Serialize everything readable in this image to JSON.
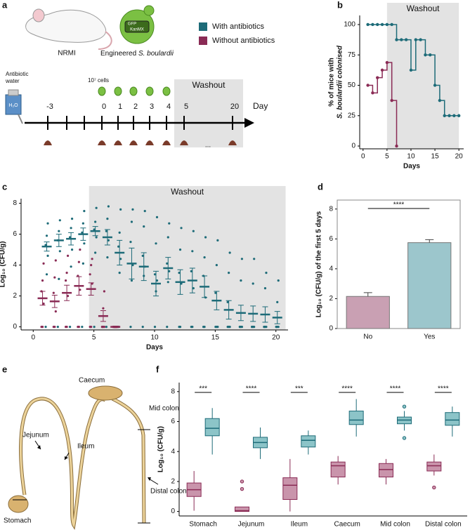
{
  "panel_labels": [
    "a",
    "b",
    "c",
    "d",
    "e",
    "f"
  ],
  "diagram_a": {
    "mouse_label": "NRMI",
    "yeast_label": [
      "Engineered ",
      "S. boulardii"
    ],
    "gene_labels": [
      "GFP",
      "KanMX"
    ],
    "bottle_label": "H₂O",
    "water_label": [
      "Antibiotic",
      "water"
    ],
    "cells_label": "10⁷ cells",
    "washout": "Washout",
    "axis_label": "Day",
    "days": [
      "-3",
      "0",
      "1",
      "2",
      "3",
      "4",
      "5",
      "20"
    ],
    "ellipsis": "..."
  },
  "diagram_e": {
    "labels": [
      "Caecum",
      "Jejunum",
      "Ileum",
      "Mid colon",
      "Distal colon",
      "Stomach"
    ]
  },
  "chart_data": [
    {
      "type": "step",
      "title": "Washout",
      "xlabel": "Days",
      "ylabel": [
        "% of mice with",
        "S. boulardii colonised"
      ],
      "x": [
        1,
        2,
        3,
        4,
        5,
        6,
        7,
        8,
        9,
        10,
        11,
        12,
        13,
        14,
        15,
        16,
        17,
        18,
        19,
        20
      ],
      "series": [
        {
          "name": "With antibiotics",
          "color": "#1d6b78",
          "values": [
            100,
            100,
            100,
            100,
            100,
            100,
            87.5,
            87.5,
            87.5,
            62.5,
            87.5,
            87.5,
            75,
            75,
            50,
            37.5,
            25,
            25,
            25,
            25
          ]
        },
        {
          "name": "Without antibiotics",
          "color": "#8a2b55",
          "values": [
            50,
            43.75,
            56.25,
            62.5,
            68.75,
            37.5,
            0,
            null,
            null,
            null,
            null,
            null,
            null,
            null,
            null,
            null,
            null,
            null,
            null,
            null
          ]
        }
      ],
      "xlim": [
        -0.7,
        21
      ],
      "ylim": [
        -2.3,
        107.5
      ],
      "xticks": [
        0,
        5,
        10,
        15,
        20
      ],
      "yticks": [
        0,
        25,
        50,
        75,
        100
      ],
      "shade": [
        5,
        20
      ]
    },
    {
      "type": "scatter-mean",
      "title": "Washout",
      "xlabel": "Days",
      "ylabel": "Log₁₀ (CFU/g)",
      "x": [
        1,
        2,
        3,
        4,
        5,
        6,
        7,
        8,
        9,
        10,
        11,
        12,
        13,
        14,
        15,
        16,
        17,
        18,
        19,
        20
      ],
      "series": [
        {
          "color": "#1d6b78",
          "values": [
            5.2,
            5.6,
            5.7,
            6.0,
            6.2,
            5.8,
            4.8,
            4.1,
            3.9,
            2.8,
            3.8,
            2.9,
            3.0,
            2.6,
            1.7,
            1.1,
            0.9,
            0.85,
            0.8,
            0.6
          ],
          "errors": [
            0.3,
            0.4,
            0.4,
            0.4,
            0.3,
            0.5,
            0.8,
            1.0,
            0.9,
            0.8,
            0.7,
            0.8,
            0.8,
            0.7,
            0.6,
            0.6,
            0.5,
            0.5,
            0.5,
            0.4
          ],
          "points": [
            [
              0,
              3.4,
              4.6,
              5.3,
              5.9,
              6.7
            ],
            [
              0,
              3.1,
              4.9,
              5.6,
              6.2,
              6.9
            ],
            [
              0,
              3.9,
              5.0,
              5.8,
              6.4,
              7.0
            ],
            [
              0,
              4.1,
              5.4,
              6.1,
              6.7,
              7.5
            ],
            [
              0,
              4.8,
              5.8,
              6.3,
              6.8,
              7.7
            ],
            [
              0,
              4.5,
              5.6,
              6.2,
              7.0,
              7.8
            ],
            [
              0,
              3.5,
              4.4,
              5.2,
              6.1,
              7.6
            ],
            [
              0,
              3.0,
              4.0,
              5.5,
              6.8,
              7.6
            ],
            [
              0,
              3.3,
              3.9,
              4.6,
              6.5,
              7.5
            ],
            [
              0,
              2.3,
              3.0,
              3.4,
              5.4,
              7.1
            ],
            [
              0,
              2.9,
              3.6,
              4.1,
              5.8,
              6.7
            ],
            [
              0,
              0,
              2.8,
              3.5,
              5.0,
              6.4
            ],
            [
              0,
              0,
              2.5,
              3.6,
              4.9,
              6.2
            ],
            [
              0,
              0,
              1.9,
              3.3,
              4.5,
              5.8
            ],
            [
              0,
              0,
              0,
              2.2,
              4.0,
              5.6
            ],
            [
              0,
              0,
              0,
              1.6,
              3.5,
              4.8
            ],
            [
              0,
              0,
              0,
              0,
              3.0,
              4.4
            ],
            [
              0,
              0,
              0,
              0,
              2.8,
              4.4
            ],
            [
              0,
              0,
              0,
              0,
              2.5,
              3.5
            ],
            [
              0,
              0,
              0,
              0,
              1.6,
              3.0
            ]
          ]
        },
        {
          "color": "#8a2b55",
          "values": [
            1.85,
            1.65,
            2.2,
            2.65,
            2.45,
            0.7,
            0,
            null,
            null,
            null,
            null,
            null,
            null,
            null,
            null,
            null,
            null,
            null,
            null,
            null
          ],
          "errors": [
            0.45,
            0.4,
            0.5,
            0.6,
            0.4,
            0.35,
            0.05,
            null,
            null,
            null,
            null,
            null,
            null,
            null,
            null,
            null,
            null,
            null,
            null,
            null
          ],
          "points": [
            [
              0,
              0,
              1.5,
              2.3,
              3.0,
              4.1
            ],
            [
              0,
              0,
              1.0,
              2.2,
              3.2,
              4.3
            ],
            [
              0,
              0,
              2.0,
              3.0,
              3.5,
              4.6
            ],
            [
              0,
              0,
              2.4,
              3.3,
              4.2,
              5.0
            ],
            [
              0,
              0,
              2.8,
              3.4,
              4.0,
              4.4
            ],
            [
              0,
              0,
              0,
              0,
              1.2,
              2.3
            ],
            [
              0,
              0,
              0,
              0,
              0,
              0
            ],
            null,
            null,
            null,
            null,
            null,
            null,
            null,
            null,
            null,
            null,
            null,
            null,
            null
          ]
        }
      ],
      "xlim": [
        -1,
        21
      ],
      "ylim": [
        -0.2,
        8.3
      ],
      "xticks": [
        0,
        5,
        10,
        15,
        20
      ],
      "yticks": [
        0,
        2,
        4,
        6,
        8
      ],
      "shade": [
        4.6,
        20.8
      ]
    },
    {
      "type": "bar",
      "ylabel": "Log₁₀ (CFU/g) of the first 5 days",
      "categories": [
        "No",
        "Yes"
      ],
      "values": [
        2.15,
        5.75
      ],
      "errors": [
        0.25,
        0.2
      ],
      "colors": [
        "#c9a0b3",
        "#9cc6cc"
      ],
      "ylim": [
        0,
        8.6
      ],
      "yticks": [
        0,
        2,
        4,
        6,
        8
      ],
      "annotation": "****"
    },
    {
      "type": "box",
      "ylabel": "Log₁₀ (CFU/g)",
      "categories": [
        "Stomach",
        "Jejunum",
        "Ileum",
        "Caecum",
        "Mid colon",
        "Distal colon"
      ],
      "series": [
        {
          "color": "#c994ab",
          "edge": "#8a2b55",
          "boxes": [
            {
              "min": 0.05,
              "q1": 1.0,
              "median": 1.45,
              "q3": 1.9,
              "max": 2.7,
              "outliers": []
            },
            {
              "min": 0,
              "q1": 0,
              "median": 0.05,
              "q3": 0.3,
              "max": 0.3,
              "outliers": [
                1.5,
                2.0
              ]
            },
            {
              "min": 0,
              "q1": 0.8,
              "median": 1.75,
              "q3": 2.25,
              "max": 3.5,
              "outliers": []
            },
            {
              "min": 1.8,
              "q1": 2.3,
              "median": 3.05,
              "q3": 3.3,
              "max": 3.7,
              "outliers": []
            },
            {
              "min": 1.8,
              "q1": 2.3,
              "median": 2.8,
              "q3": 3.2,
              "max": 3.5,
              "outliers": []
            },
            {
              "min": 2.4,
              "q1": 2.7,
              "median": 3.05,
              "q3": 3.3,
              "max": 3.8,
              "outliers": [
                1.6
              ]
            }
          ]
        },
        {
          "color": "#8cc4c8",
          "edge": "#1d6b78",
          "boxes": [
            {
              "min": 3.8,
              "q1": 5.05,
              "median": 5.55,
              "q3": 6.2,
              "max": 6.9,
              "outliers": []
            },
            {
              "min": 3.5,
              "q1": 4.25,
              "median": 4.6,
              "q3": 4.95,
              "max": 5.6,
              "outliers": []
            },
            {
              "min": 3.8,
              "q1": 4.3,
              "median": 4.75,
              "q3": 5.05,
              "max": 5.4,
              "outliers": []
            },
            {
              "min": 5.0,
              "q1": 5.8,
              "median": 6.1,
              "q3": 6.7,
              "max": 7.5,
              "outliers": []
            },
            {
              "min": 5.4,
              "q1": 5.85,
              "median": 6.1,
              "q3": 6.3,
              "max": 6.7,
              "outliers": [
                4.9,
                7.0
              ]
            },
            {
              "min": 5.0,
              "q1": 5.75,
              "median": 6.1,
              "q3": 6.6,
              "max": 7.0,
              "outliers": []
            }
          ]
        }
      ],
      "ylim": [
        -0.3,
        8.6
      ],
      "yticks": [
        0,
        2,
        4,
        6,
        8
      ],
      "annotations": [
        "***",
        "****",
        "***",
        "****",
        "****",
        "****"
      ]
    }
  ]
}
